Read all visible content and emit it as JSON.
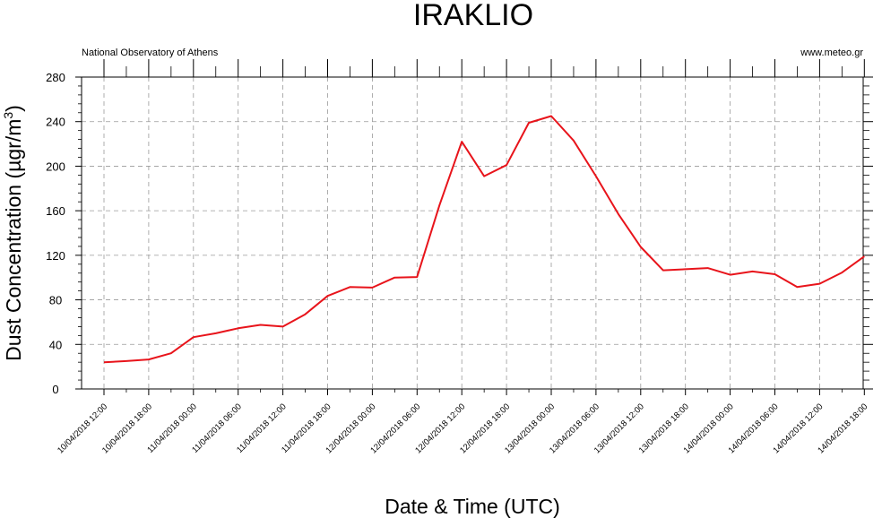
{
  "chart_data": {
    "type": "line",
    "title": "IRAKLIO",
    "source_left": "National Observatory of Athens",
    "source_right": "www.meteo.gr",
    "xlabel": "Date & Time (UTC)",
    "ylabel": "Dust Concentration (µgr/m",
    "ylabel_sup": "3",
    "ylabel_end": ")",
    "ylim": [
      0,
      280
    ],
    "yticks": [
      "0",
      "40",
      "80",
      "120",
      "160",
      "200",
      "240",
      "280"
    ],
    "xticks": [
      "10/04/2018 12:00",
      "10/04/2018 18:00",
      "11/04/2018 00:00",
      "11/04/2018 06:00",
      "11/04/2018 12:00",
      "11/04/2018 18:00",
      "12/04/2018 00:00",
      "12/04/2018 06:00",
      "12/04/2018 12:00",
      "12/04/2018 18:00",
      "13/04/2018 00:00",
      "13/04/2018 06:00",
      "13/04/2018 12:00",
      "13/04/2018 18:00",
      "14/04/2018 00:00",
      "14/04/2018 06:00",
      "14/04/2018 12:00",
      "14/04/2018 18:00"
    ],
    "grid": true,
    "line_color": "#e8141b",
    "series": [
      {
        "x": [
          "10/04/2018 12:00",
          "10/04/2018 15:00",
          "10/04/2018 18:00",
          "10/04/2018 21:00",
          "11/04/2018 00:00",
          "11/04/2018 03:00",
          "11/04/2018 06:00",
          "11/04/2018 09:00",
          "11/04/2018 12:00",
          "11/04/2018 15:00",
          "11/04/2018 18:00",
          "11/04/2018 21:00",
          "12/04/2018 00:00",
          "12/04/2018 03:00",
          "12/04/2018 06:00",
          "12/04/2018 09:00",
          "12/04/2018 12:00",
          "12/04/2018 15:00",
          "12/04/2018 18:00",
          "12/04/2018 21:00",
          "13/04/2018 00:00",
          "13/04/2018 03:00",
          "13/04/2018 06:00",
          "13/04/2018 09:00",
          "13/04/2018 12:00",
          "13/04/2018 15:00",
          "13/04/2018 18:00",
          "13/04/2018 21:00",
          "14/04/2018 00:00",
          "14/04/2018 03:00",
          "14/04/2018 06:00",
          "14/04/2018 09:00",
          "14/04/2018 12:00",
          "14/04/2018 15:00",
          "14/04/2018 18:00"
        ],
        "values": [
          24,
          25,
          26.5,
          32,
          46.5,
          50,
          54.5,
          57.5,
          56,
          67,
          83.5,
          91.5,
          91,
          100,
          100.5,
          165,
          222,
          191,
          201,
          239,
          245,
          223,
          191,
          157,
          127.5,
          106.5,
          107.5,
          108.5,
          102.5,
          105.5,
          103,
          91.5,
          94.5,
          104.5,
          119
        ]
      }
    ]
  }
}
